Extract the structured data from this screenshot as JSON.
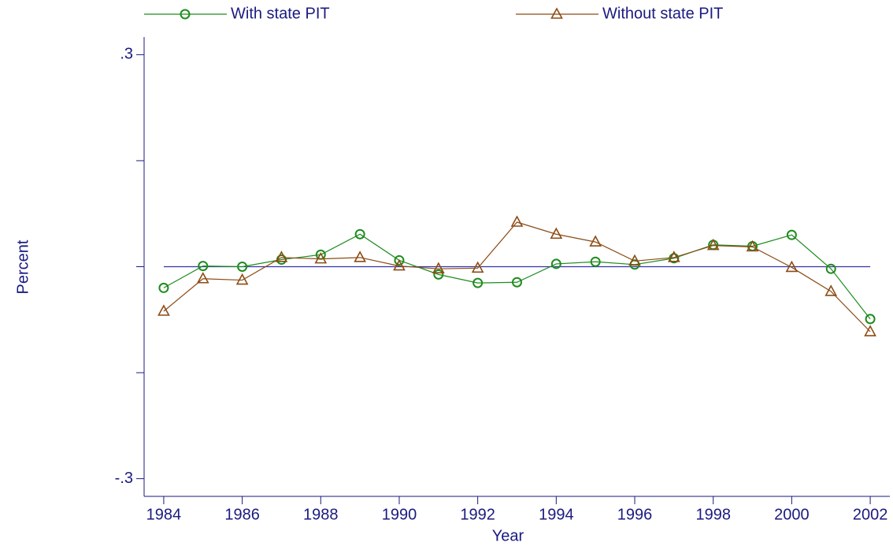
{
  "chart_data": {
    "type": "line",
    "x_label": "Year",
    "y_label": "Percent",
    "x": [
      1984,
      1985,
      1986,
      1987,
      1988,
      1989,
      1990,
      1991,
      1992,
      1993,
      1994,
      1995,
      1996,
      1997,
      1998,
      1999,
      2000,
      2001,
      2002
    ],
    "series": [
      {
        "name": "With state PIT",
        "color": "#1e8c1e",
        "marker": "circle",
        "values": [
          -0.03,
          0.001,
          0.0,
          0.01,
          0.017,
          0.046,
          0.009,
          -0.011,
          -0.023,
          -0.022,
          0.004,
          0.007,
          0.003,
          0.012,
          0.031,
          0.029,
          0.045,
          -0.003,
          -0.074
        ]
      },
      {
        "name": "Without state PIT",
        "color": "#8c4b14",
        "marker": "triangle",
        "values": [
          -0.063,
          -0.017,
          -0.019,
          0.013,
          0.011,
          0.013,
          0.001,
          -0.003,
          -0.002,
          0.063,
          0.046,
          0.035,
          0.008,
          0.013,
          0.03,
          0.028,
          -0.001,
          -0.035,
          -0.092
        ]
      }
    ],
    "xlim": [
      1983.5,
      2002.5
    ],
    "xticks": [
      1984,
      1986,
      1988,
      1990,
      1992,
      1994,
      1996,
      1998,
      2000,
      2002
    ],
    "ylim": [
      -0.325,
      0.325
    ],
    "yticks": [
      {
        "value": -0.3,
        "label": "-.3"
      },
      {
        "value": 0.3,
        "label": ".3"
      }
    ],
    "yminorticks": [
      -0.15,
      0,
      0.15
    ],
    "hline": 0,
    "hline_color": "#3333aa"
  }
}
